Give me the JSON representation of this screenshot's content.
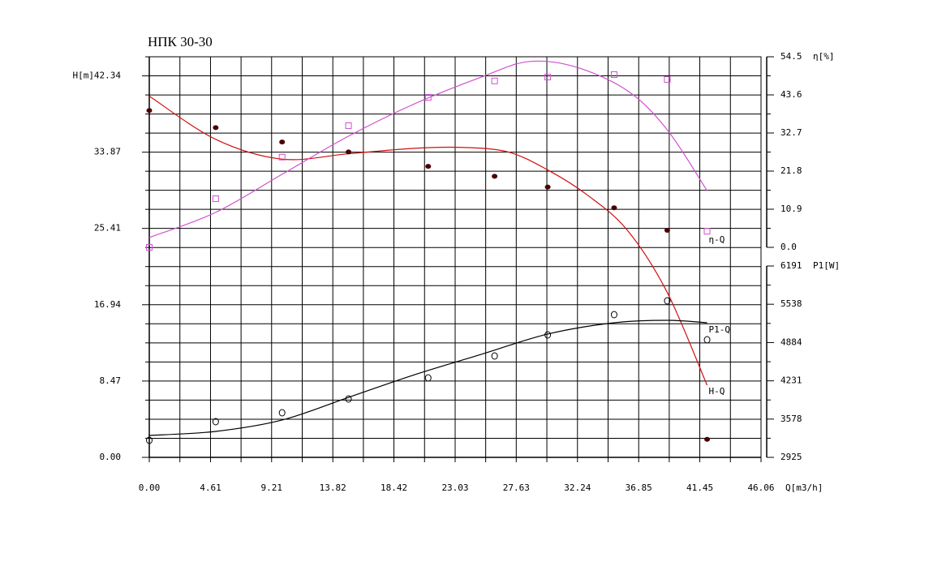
{
  "chart_data": {
    "type": "pump-curve",
    "title": "НПК 30-30",
    "xlabel": "Q[m3/h]",
    "ylabel": "H[m]",
    "y2label": "η[%]",
    "y3label": "P1[W]",
    "xlim": [
      0,
      46.06
    ],
    "xticks": [
      {
        "value": 0,
        "label": "0.00"
      },
      4.61,
      9.21,
      13.82,
      18.42,
      23.03,
      27.63,
      32.24,
      36.85,
      41.45,
      46.06
    ],
    "ylim": [
      0,
      44.46
    ],
    "yticks": [
      {
        "value": 0,
        "label": "0.00"
      },
      8.47,
      16.94,
      25.41,
      33.87,
      42.34
    ],
    "y2lim": [
      0,
      54.5
    ],
    "y2ticks": [
      {
        "value": 0,
        "label": "0.0"
      },
      10.9,
      21.8,
      32.7,
      43.6,
      54.5
    ],
    "y3lim": [
      2925,
      6191
    ],
    "y3ticks": [
      2925,
      3578,
      4231,
      4884,
      5538,
      6191
    ],
    "grid": true,
    "series": [
      {
        "name": "H-Q",
        "axis": "y",
        "marker": "dot",
        "color": "#d01010",
        "marker_color": "#4a0000",
        "x": [
          0,
          5,
          10,
          15,
          21,
          26,
          30,
          35,
          39,
          42
        ],
        "values": [
          38.5,
          36.6,
          35.0,
          33.9,
          32.3,
          31.2,
          30.0,
          27.7,
          25.2,
          2.0
        ],
        "fit": {
          "x": [
            0,
            5,
            10,
            15,
            20,
            23.5,
            27,
            30,
            33,
            36,
            39,
            42
          ],
          "values": [
            40.1,
            35.3,
            33.1,
            33.7,
            34.3,
            34.4,
            33.9,
            31.9,
            29.1,
            25.2,
            18.3,
            8.0
          ]
        }
      },
      {
        "name": "η-Q",
        "axis": "y2",
        "marker": "square",
        "color": "#d050d0",
        "marker_color": "#d050d0",
        "x": [
          0,
          5,
          10,
          15,
          21,
          26,
          30,
          35,
          39,
          42
        ],
        "values": [
          0,
          13.9,
          25.8,
          34.8,
          42.9,
          47.6,
          48.7,
          49.4,
          48.0,
          4.6
        ],
        "fit": {
          "x": [
            0,
            5,
            10,
            15,
            20,
            25,
            28.5,
            32,
            36,
            39,
            42
          ],
          "values": [
            2.8,
            10.0,
            20.9,
            31.8,
            41.1,
            48.7,
            53.1,
            51.7,
            44.8,
            33.6,
            16.2
          ]
        }
      },
      {
        "name": "P1-Q",
        "axis": "y3",
        "marker": "circle",
        "color": "#000000",
        "marker_color": "#000000",
        "x": [
          0,
          5,
          10,
          15,
          21,
          26,
          30,
          35,
          39,
          42
        ],
        "values": [
          3216,
          3534,
          3686,
          3921,
          4281,
          4655,
          5015,
          5361,
          5596,
          4932
        ],
        "fit": {
          "x": [
            0,
            5,
            10,
            15,
            20,
            25,
            30,
            35,
            39,
            42
          ],
          "values": [
            3299,
            3368,
            3562,
            3949,
            4337,
            4683,
            5029,
            5222,
            5264,
            5222
          ]
        }
      }
    ]
  }
}
